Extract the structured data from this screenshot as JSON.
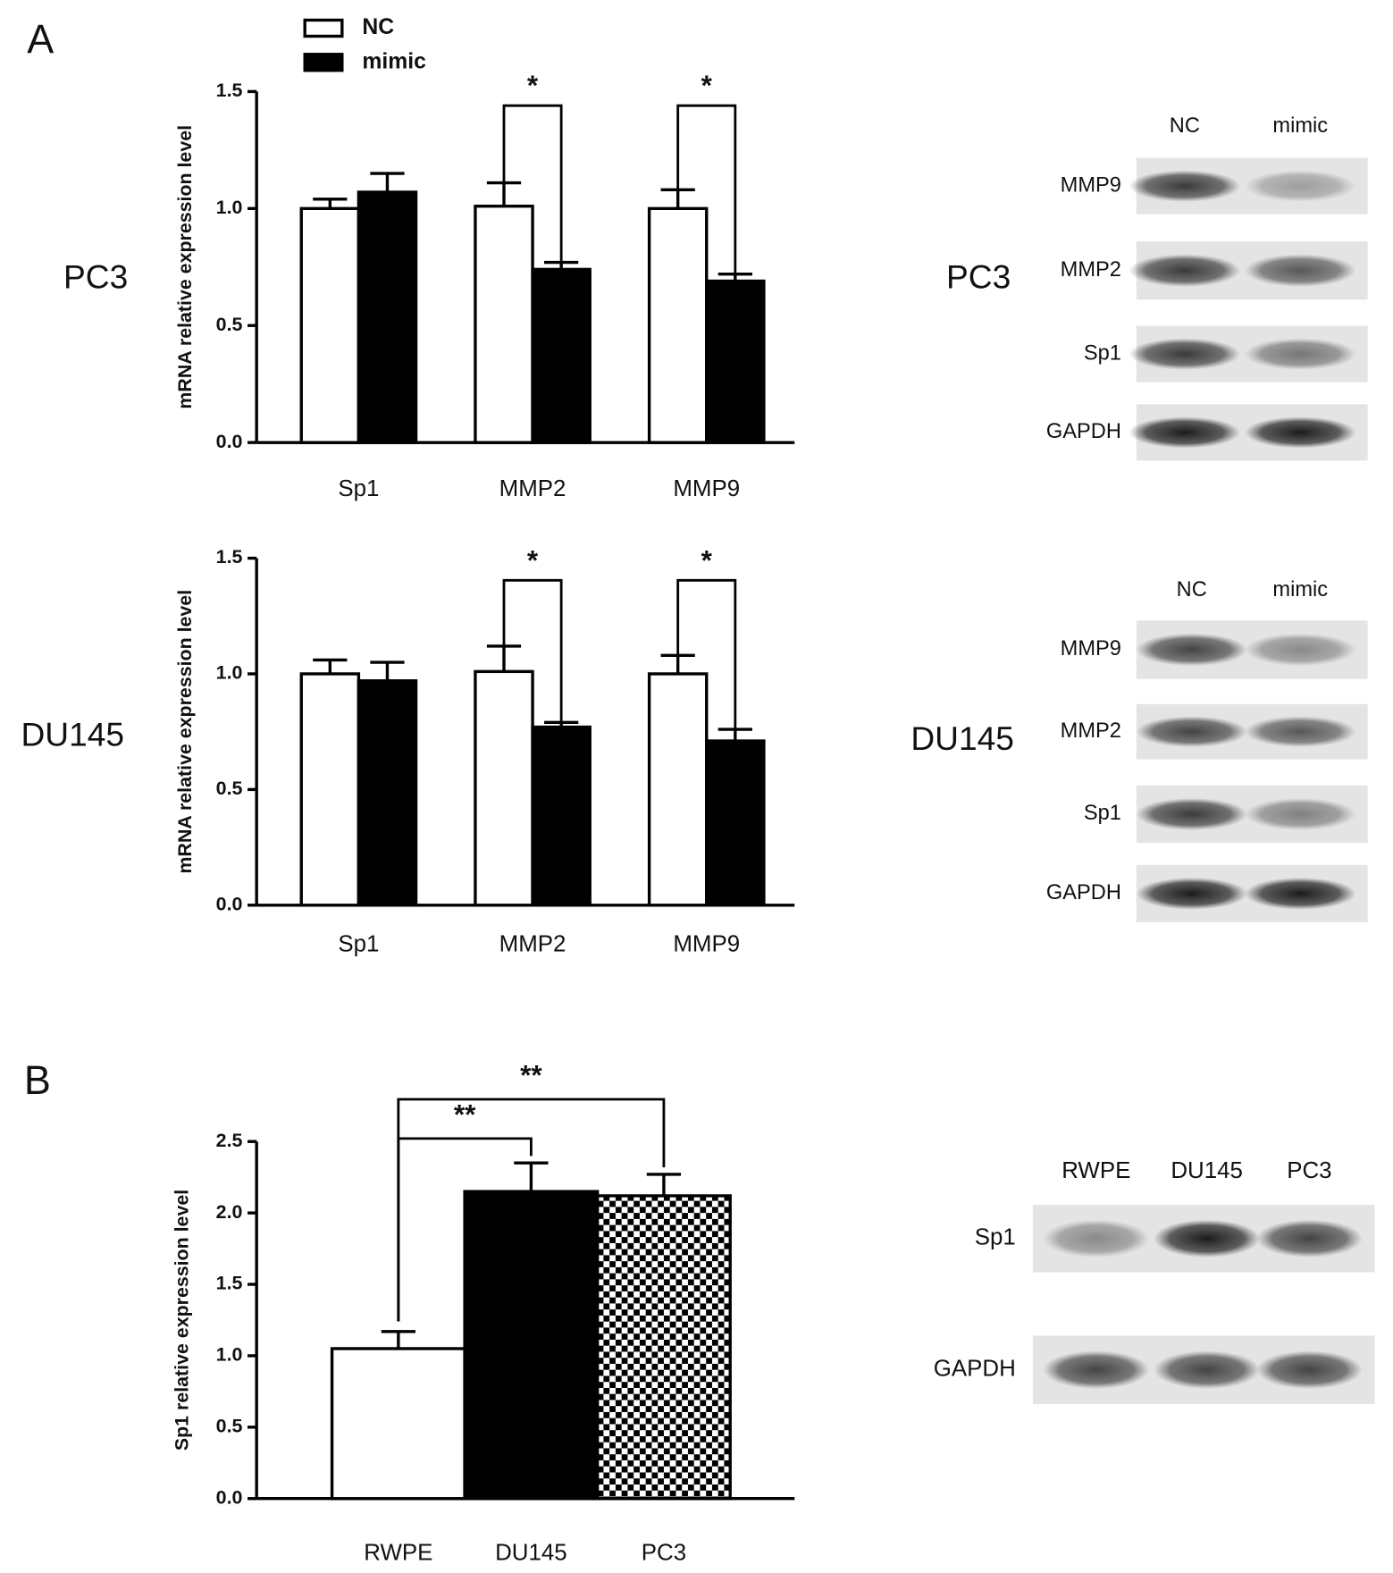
{
  "panel_labels": [
    "A",
    "B"
  ],
  "chart_data": [
    {
      "type": "bar",
      "side_label": "PC3",
      "y_label": "mRNA relative expression level",
      "categories": [
        "Sp1",
        "MMP2",
        "MMP9"
      ],
      "series": [
        {
          "name": "NC",
          "color": "#ffffff",
          "values": [
            1.0,
            1.01,
            1.0
          ],
          "errors": [
            0.04,
            0.1,
            0.08
          ]
        },
        {
          "name": "mimic",
          "color": "#000000",
          "values": [
            1.07,
            0.74,
            0.69
          ],
          "errors": [
            0.08,
            0.03,
            0.03
          ]
        }
      ],
      "ylim": [
        0,
        1.5
      ],
      "yticks": [
        {
          "value": 0,
          "label": "0.0"
        },
        0.5,
        {
          "value": 1,
          "label": "1.0"
        },
        1.5
      ],
      "legend": "top-left",
      "annotations": [
        {
          "text": "*",
          "category": "MMP2"
        },
        {
          "text": "*",
          "category": "MMP9"
        }
      ]
    },
    {
      "type": "bar",
      "side_label": "DU145",
      "y_label": "mRNA relative expression level",
      "categories": [
        "Sp1",
        "MMP2",
        "MMP9"
      ],
      "series": [
        {
          "color": "#ffffff",
          "values": [
            1.0,
            1.01,
            1.0
          ],
          "errors": [
            0.06,
            0.11,
            0.08
          ]
        },
        {
          "color": "#000000",
          "values": [
            0.97,
            0.77,
            0.71
          ],
          "errors": [
            0.08,
            0.02,
            0.05
          ]
        }
      ],
      "ylim": [
        0,
        1.5
      ],
      "yticks": [
        {
          "value": 0,
          "label": "0.0"
        },
        0.5,
        {
          "value": 1,
          "label": "1.0"
        },
        1.5
      ],
      "annotations": [
        {
          "text": "*",
          "category": "MMP2"
        },
        {
          "text": "*",
          "category": "MMP9"
        }
      ]
    },
    {
      "type": "bar",
      "y_label": "Sp1 relative expression level",
      "categories": [
        "RWPE",
        "DU145",
        "PC3"
      ],
      "values": [
        1.05,
        2.15,
        2.12
      ],
      "errors": [
        0.12,
        0.2,
        0.15
      ],
      "fills": [
        "#ffffff",
        "#000000",
        "checkerboard"
      ],
      "ylim": [
        0,
        2.5
      ],
      "yticks": [
        {
          "value": 0,
          "label": "0.0"
        },
        0.5,
        {
          "value": 1,
          "label": "1.0"
        },
        1.5,
        {
          "value": 2,
          "label": "2.0"
        },
        2.5
      ],
      "annotations": [
        {
          "text": "**",
          "between": [
            "RWPE",
            "DU145"
          ]
        },
        {
          "text": "**",
          "between": [
            "RWPE",
            "PC3"
          ]
        }
      ]
    }
  ],
  "blots": [
    {
      "row_label": "PC3",
      "lanes": [
        "NC",
        "mimic"
      ],
      "bands": [
        "MMP9",
        "MMP2",
        "Sp1",
        "GAPDH"
      ]
    },
    {
      "row_label": "DU145",
      "lanes": [
        "NC",
        "mimic"
      ],
      "bands": [
        "MMP9",
        "MMP2",
        "Sp1",
        "GAPDH"
      ]
    },
    {
      "lanes": [
        "RWPE",
        "DU145",
        "PC3"
      ],
      "bands": [
        "Sp1",
        "GAPDH"
      ]
    }
  ]
}
